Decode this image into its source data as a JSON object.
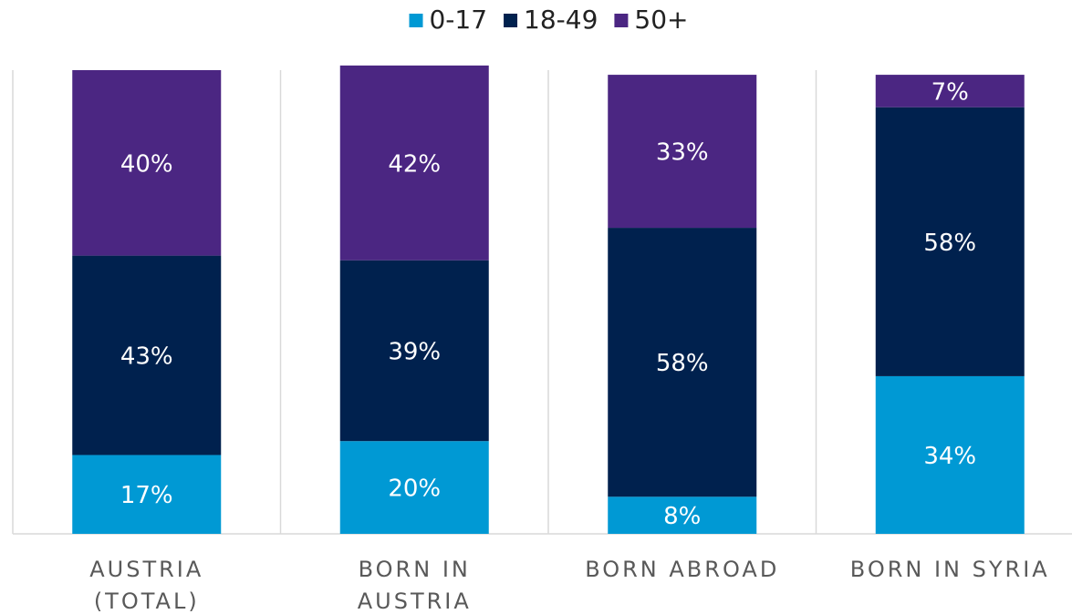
{
  "chart_data": {
    "type": "stacked_bar",
    "categories": [
      [
        "AUSTRIA",
        "(TOTAL)"
      ],
      [
        "BORN IN",
        "AUSTRIA"
      ],
      [
        "BORN ABROAD"
      ],
      [
        "BORN IN SYRIA"
      ]
    ],
    "series": [
      {
        "name": "0-17",
        "color": "#0099d4",
        "values": [
          17,
          20,
          8,
          34
        ],
        "value_labels": [
          "17%",
          "20%",
          "8%",
          "34%"
        ]
      },
      {
        "name": "18-49",
        "color": "#00214e",
        "values": [
          43,
          39,
          58,
          58
        ],
        "value_labels": [
          "43%",
          "39%",
          "58%",
          "58%"
        ]
      },
      {
        "name": "50+",
        "color": "#4b2682",
        "values": [
          40,
          42,
          33,
          7
        ],
        "value_labels": [
          "40%",
          "42%",
          "33%",
          "7%"
        ]
      }
    ],
    "ylim": [
      0,
      100
    ],
    "legend": "top"
  }
}
